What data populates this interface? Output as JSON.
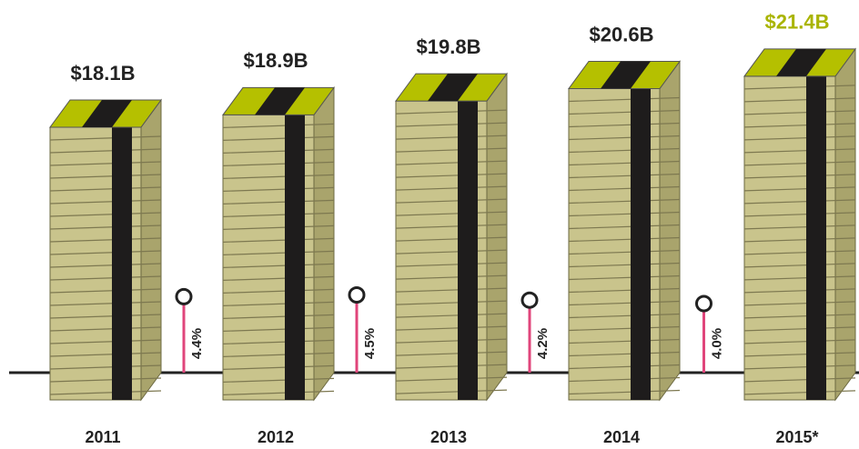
{
  "chart_data": {
    "type": "bar",
    "categories": [
      "2011",
      "2012",
      "2013",
      "2014",
      "2015*"
    ],
    "values": [
      18.1,
      18.9,
      19.8,
      20.6,
      21.4
    ],
    "value_labels": [
      "$18.1B",
      "$18.9B",
      "$19.8B",
      "$20.6B",
      "$21.4B"
    ],
    "color": "#c9c48c",
    "top_color": "#b5c000",
    "band_color": "#1e1c1c",
    "highlight_color": "#a9b400",
    "growth": {
      "values": [
        4.4,
        4.5,
        4.2,
        4.0
      ],
      "value_labels": [
        "4.4%",
        "4.5%",
        "4.2%",
        "4.0%"
      ],
      "color": "#e0457b"
    }
  }
}
